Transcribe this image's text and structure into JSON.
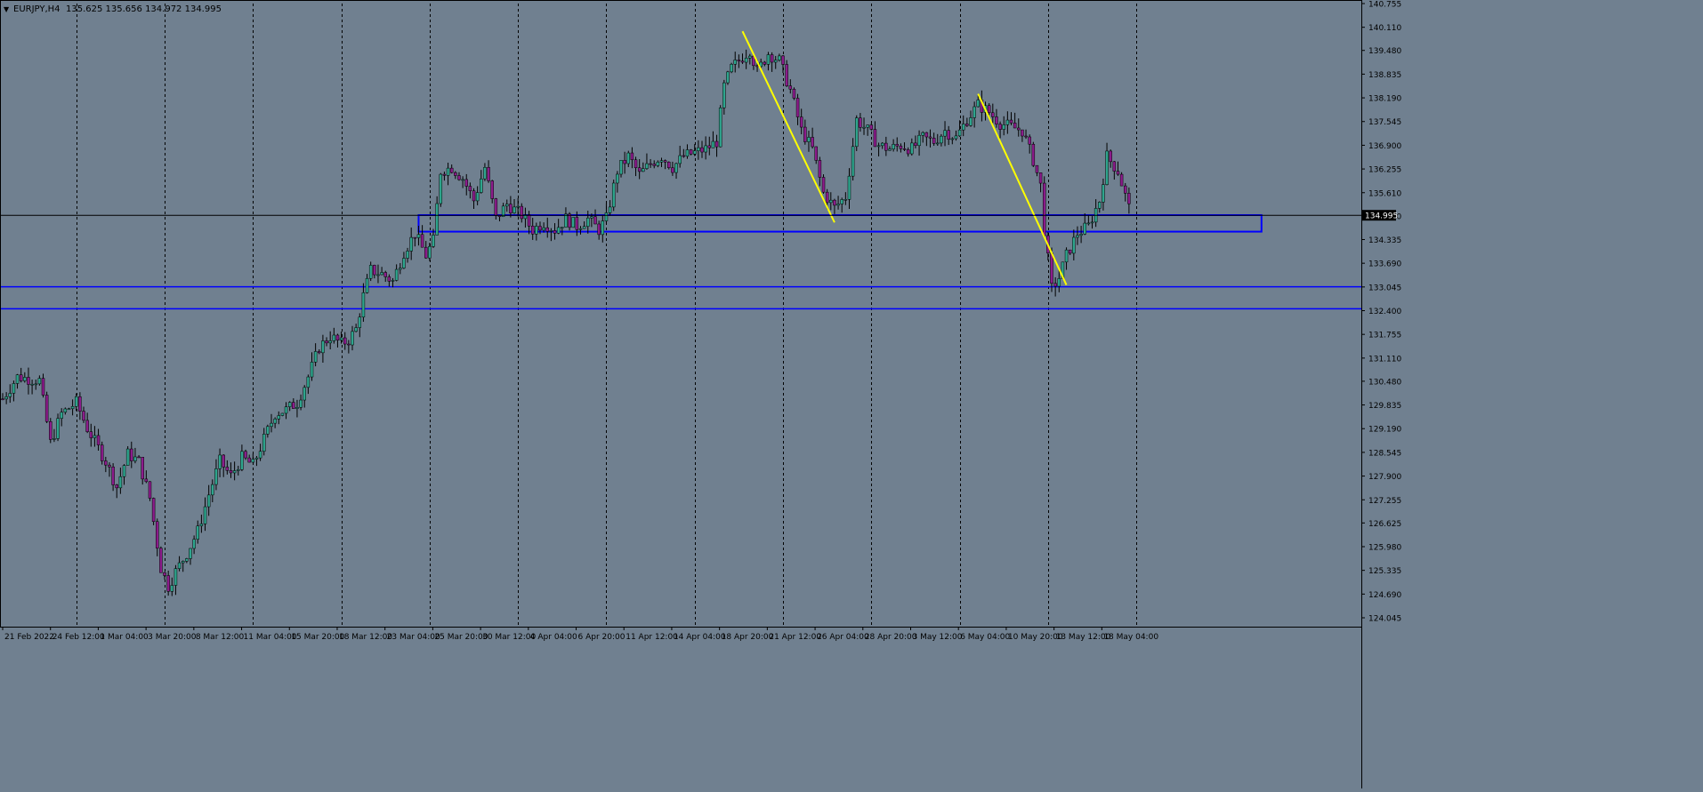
{
  "header": {
    "menu_arrow": "▼",
    "symbol": "EURJPY,H4",
    "ohlc": "135.625 135.656 134.972 134.995"
  },
  "chart_data": {
    "type": "candlestick",
    "symbol": "EURJPY",
    "timeframe": "H4",
    "ohlc_last": {
      "open": 135.625,
      "high": 135.656,
      "low": 134.972,
      "close": 134.995
    },
    "current_price": 134.995,
    "current_price_label": "134.995",
    "y_range": [
      124.045,
      140.755
    ],
    "price_ticks": [
      140.755,
      140.11,
      139.48,
      138.835,
      138.19,
      137.545,
      136.9,
      136.255,
      135.61,
      134.98,
      134.335,
      133.69,
      133.045,
      132.4,
      131.755,
      131.11,
      130.48,
      129.835,
      129.19,
      128.545,
      127.9,
      127.255,
      126.625,
      125.98,
      125.335,
      124.69,
      124.045
    ],
    "price_tick_labels": [
      "140.755",
      "140.110",
      "139.480",
      "138.835",
      "138.190",
      "137.545",
      "136.900",
      "136.255",
      "135.610",
      "134.980",
      "134.335",
      "133.690",
      "133.045",
      "132.400",
      "131.755",
      "131.110",
      "130.480",
      "129.835",
      "129.190",
      "128.545",
      "127.900",
      "127.255",
      "126.625",
      "125.980",
      "125.335",
      "124.690",
      "124.045"
    ],
    "time_labels": [
      "21 Feb 2022",
      "24 Feb 12:00",
      "1 Mar 04:00",
      "3 Mar 20:00",
      "8 Mar 12:00",
      "11 Mar 04:00",
      "15 Mar 20:00",
      "18 Mar 12:00",
      "23 Mar 04:00",
      "25 Mar 20:00",
      "30 Mar 12:00",
      "4 Apr 04:00",
      "6 Apr 20:00",
      "11 Apr 12:00",
      "14 Apr 04:00",
      "18 Apr 20:00",
      "21 Apr 12:00",
      "26 Apr 04:00",
      "28 Apr 20:00",
      "3 May 12:00",
      "6 May 04:00",
      "10 May 20:00",
      "13 May 12:00",
      "18 May 04:00"
    ],
    "total_bars": 380,
    "period_separators_bar_index": [
      20,
      44,
      68,
      92,
      116,
      140,
      164,
      188,
      212,
      236,
      260,
      284,
      308
    ],
    "close_path": [
      [
        0,
        130.0
      ],
      [
        4,
        130.6
      ],
      [
        10,
        130.5
      ],
      [
        13,
        128.8
      ],
      [
        16,
        129.6
      ],
      [
        20,
        129.9
      ],
      [
        23,
        129.2
      ],
      [
        28,
        128.3
      ],
      [
        31,
        127.6
      ],
      [
        34,
        128.5
      ],
      [
        37,
        128.3
      ],
      [
        40,
        127.3
      ],
      [
        43,
        125.4
      ],
      [
        45,
        124.9
      ],
      [
        47,
        125.3
      ],
      [
        50,
        125.8
      ],
      [
        53,
        126.4
      ],
      [
        56,
        127.4
      ],
      [
        59,
        128.3
      ],
      [
        62,
        127.9
      ],
      [
        65,
        128.4
      ],
      [
        68,
        128.2
      ],
      [
        71,
        128.9
      ],
      [
        74,
        129.6
      ],
      [
        77,
        129.7
      ],
      [
        80,
        129.9
      ],
      [
        83,
        130.6
      ],
      [
        86,
        131.4
      ],
      [
        89,
        131.7
      ],
      [
        92,
        131.5
      ],
      [
        94,
        131.6
      ],
      [
        96,
        131.9
      ],
      [
        98,
        132.8
      ],
      [
        100,
        133.5
      ],
      [
        103,
        133.4
      ],
      [
        106,
        133.2
      ],
      [
        109,
        134.0
      ],
      [
        112,
        134.5
      ],
      [
        115,
        133.9
      ],
      [
        117,
        134.3
      ],
      [
        119,
        136.2
      ],
      [
        122,
        136.3
      ],
      [
        125,
        136.0
      ],
      [
        128,
        135.4
      ],
      [
        131,
        136.3
      ],
      [
        134,
        134.9
      ],
      [
        137,
        135.3
      ],
      [
        141,
        135.0
      ],
      [
        144,
        134.6
      ],
      [
        147,
        134.8
      ],
      [
        150,
        134.6
      ],
      [
        153,
        134.9
      ],
      [
        156,
        134.7
      ],
      [
        159,
        134.9
      ],
      [
        162,
        134.6
      ],
      [
        164,
        134.9
      ],
      [
        167,
        136.2
      ],
      [
        170,
        136.6
      ],
      [
        173,
        136.1
      ],
      [
        176,
        136.4
      ],
      [
        179,
        136.6
      ],
      [
        182,
        136.3
      ],
      [
        185,
        136.6
      ],
      [
        188,
        136.7
      ],
      [
        191,
        136.8
      ],
      [
        194,
        137.0
      ],
      [
        196,
        138.5
      ],
      [
        198,
        139.0
      ],
      [
        200,
        139.2
      ],
      [
        203,
        139.5
      ],
      [
        205,
        138.9
      ],
      [
        208,
        139.4
      ],
      [
        211,
        139.2
      ],
      [
        214,
        138.4
      ],
      [
        217,
        137.3
      ],
      [
        220,
        136.8
      ],
      [
        223,
        135.6
      ],
      [
        226,
        135.2
      ],
      [
        229,
        135.5
      ],
      [
        232,
        137.6
      ],
      [
        235,
        137.3
      ],
      [
        238,
        136.9
      ],
      [
        241,
        136.8
      ],
      [
        244,
        136.9
      ],
      [
        247,
        136.8
      ],
      [
        250,
        137.1
      ],
      [
        253,
        137.0
      ],
      [
        256,
        137.3
      ],
      [
        259,
        137.1
      ],
      [
        262,
        137.6
      ],
      [
        265,
        138.0
      ],
      [
        268,
        137.8
      ],
      [
        271,
        137.5
      ],
      [
        274,
        137.4
      ],
      [
        277,
        137.3
      ],
      [
        280,
        136.5
      ],
      [
        282,
        135.8
      ],
      [
        283,
        134.6
      ],
      [
        285,
        133.0
      ],
      [
        287,
        133.3
      ],
      [
        289,
        133.9
      ],
      [
        292,
        134.5
      ],
      [
        295,
        134.7
      ],
      [
        298,
        135.4
      ],
      [
        300,
        136.6
      ],
      [
        303,
        136.2
      ],
      [
        306,
        135.2
      ]
    ],
    "horizontal_zones": [
      {
        "type": "rectangle",
        "price_high": 135.0,
        "price_low": 134.55,
        "from_bar": 113,
        "to_bar": 342,
        "color": "#0000ff"
      },
      {
        "type": "hline",
        "price": 133.05,
        "color": "#0000ff"
      },
      {
        "type": "hline",
        "price": 132.45,
        "color": "#0000ff"
      }
    ],
    "trendlines": [
      {
        "from": [
          201,
          140.0
        ],
        "to": [
          226,
          134.8
        ],
        "color": "#ffff00"
      },
      {
        "from": [
          265,
          138.3
        ],
        "to": [
          289,
          133.1
        ],
        "color": "#ffff00"
      }
    ],
    "colors": {
      "background": "#708090",
      "bull_candle": "#2ea58d",
      "bear_candle": "#8b1c8b",
      "wick": "#000000",
      "grid_separator": "#000000",
      "axis": "#000000",
      "zone": "#0000ff",
      "trendline": "#ffff00",
      "price_label_bg": "#000000",
      "price_label_text": "#ffffff"
    },
    "grid": true
  }
}
